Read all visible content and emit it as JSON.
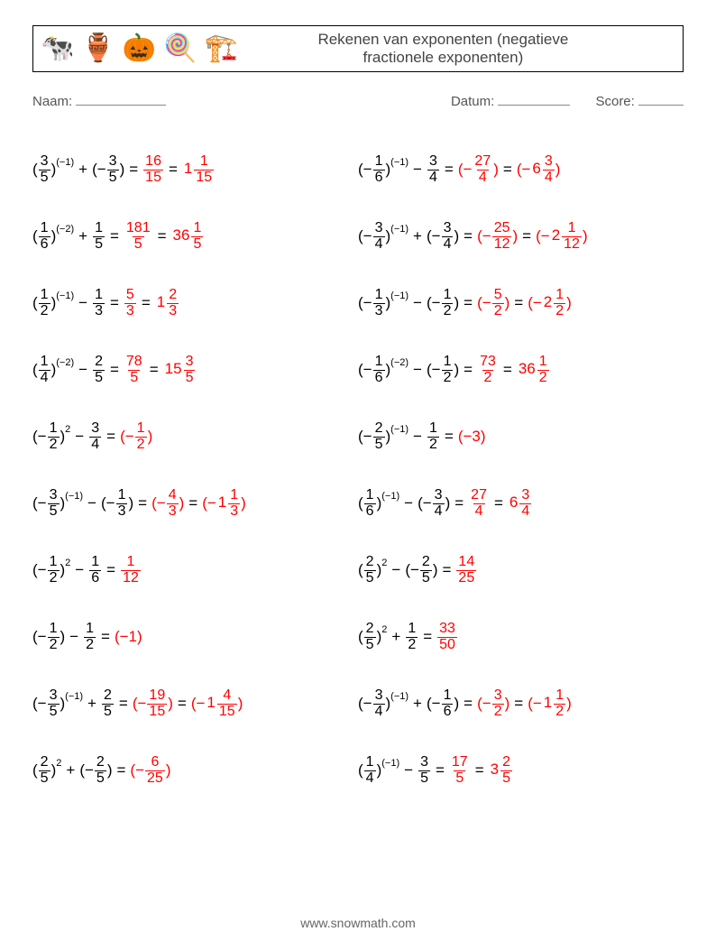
{
  "colors": {
    "text": "#000000",
    "answer": "#ff0000",
    "background": "#ffffff",
    "meta": "#555555",
    "title": "#444444"
  },
  "header": {
    "icons": [
      "🐄",
      "🏺",
      "🎃",
      "🍭",
      "🏗️"
    ],
    "title_line1": "Rekenen van exponenten (negatieve",
    "title_line2": "fractionele exponenten)"
  },
  "meta": {
    "name_label": "Naam:",
    "date_label": "Datum:",
    "score_label": "Score:"
  },
  "footer": "www.snowmath.com",
  "problems": {
    "left": [
      {
        "base": {
          "sign": "",
          "n": "3",
          "d": "5"
        },
        "exp": "(−1)",
        "op": "+",
        "term": {
          "sign": "−",
          "n": "3",
          "d": "5",
          "paren": true
        },
        "a_frac": {
          "n": "16",
          "d": "15"
        },
        "a_mixed": {
          "w": "1",
          "n": "1",
          "d": "15"
        }
      },
      {
        "base": {
          "sign": "",
          "n": "1",
          "d": "6"
        },
        "exp": "(−2)",
        "op": "+",
        "term": {
          "sign": "",
          "n": "1",
          "d": "5"
        },
        "a_frac": {
          "n": "181",
          "d": "5"
        },
        "a_mixed": {
          "w": "36",
          "n": "1",
          "d": "5"
        }
      },
      {
        "base": {
          "sign": "",
          "n": "1",
          "d": "2"
        },
        "exp": "(−1)",
        "op": "−",
        "term": {
          "sign": "",
          "n": "1",
          "d": "3"
        },
        "a_frac": {
          "n": "5",
          "d": "3"
        },
        "a_mixed": {
          "w": "1",
          "n": "2",
          "d": "3"
        }
      },
      {
        "base": {
          "sign": "",
          "n": "1",
          "d": "4"
        },
        "exp": "(−2)",
        "op": "−",
        "term": {
          "sign": "",
          "n": "2",
          "d": "5"
        },
        "a_frac": {
          "n": "78",
          "d": "5"
        },
        "a_mixed": {
          "w": "15",
          "n": "3",
          "d": "5"
        }
      },
      {
        "base": {
          "sign": "−",
          "n": "1",
          "d": "2"
        },
        "exp": "2",
        "op": "−",
        "term": {
          "sign": "",
          "n": "3",
          "d": "4"
        },
        "a_frac": {
          "sign": "−",
          "n": "1",
          "d": "2",
          "paren": true
        }
      },
      {
        "base": {
          "sign": "−",
          "n": "3",
          "d": "5"
        },
        "exp": "(−1)",
        "op": "−",
        "term": {
          "sign": "−",
          "n": "1",
          "d": "3",
          "paren": true
        },
        "a_frac": {
          "sign": "−",
          "n": "4",
          "d": "3",
          "paren": true
        },
        "a_mixed": {
          "paren": true,
          "sign": "−",
          "w": "1",
          "n": "1",
          "d": "3"
        }
      },
      {
        "base": {
          "sign": "−",
          "n": "1",
          "d": "2"
        },
        "exp": "2",
        "op": "−",
        "term": {
          "sign": "",
          "n": "1",
          "d": "6"
        },
        "a_frac": {
          "n": "1",
          "d": "12"
        }
      },
      {
        "base": {
          "sign": "−",
          "n": "1",
          "d": "2"
        },
        "exp": "",
        "op": "−",
        "term": {
          "sign": "",
          "n": "1",
          "d": "2"
        },
        "a_int": {
          "text": "(−1)"
        }
      },
      {
        "base": {
          "sign": "−",
          "n": "3",
          "d": "5"
        },
        "exp": "(−1)",
        "op": "+",
        "term": {
          "sign": "",
          "n": "2",
          "d": "5"
        },
        "a_frac": {
          "sign": "−",
          "n": "19",
          "d": "15",
          "paren": true
        },
        "a_mixed": {
          "paren": true,
          "sign": "−",
          "w": "1",
          "n": "4",
          "d": "15"
        }
      },
      {
        "base": {
          "sign": "",
          "n": "2",
          "d": "5"
        },
        "exp": "2",
        "op": "+",
        "term": {
          "sign": "−",
          "n": "2",
          "d": "5",
          "paren": true
        },
        "a_frac": {
          "sign": "−",
          "n": "6",
          "d": "25",
          "paren": true
        }
      }
    ],
    "right": [
      {
        "base": {
          "sign": "−",
          "n": "1",
          "d": "6"
        },
        "exp": "(−1)",
        "op": "−",
        "term": {
          "sign": "",
          "n": "3",
          "d": "4"
        },
        "a_frac": {
          "sign": "−",
          "n": "27",
          "d": "4",
          "paren": true
        },
        "a_mixed": {
          "paren": true,
          "sign": "−",
          "w": "6",
          "n": "3",
          "d": "4"
        }
      },
      {
        "base": {
          "sign": "−",
          "n": "3",
          "d": "4"
        },
        "exp": "(−1)",
        "op": "+",
        "term": {
          "sign": "−",
          "n": "3",
          "d": "4",
          "paren": true
        },
        "a_frac": {
          "sign": "−",
          "n": "25",
          "d": "12",
          "paren": true
        },
        "a_mixed": {
          "paren": true,
          "sign": "−",
          "w": "2",
          "n": "1",
          "d": "12"
        }
      },
      {
        "base": {
          "sign": "−",
          "n": "1",
          "d": "3"
        },
        "exp": "(−1)",
        "op": "−",
        "term": {
          "sign": "−",
          "n": "1",
          "d": "2",
          "paren": true
        },
        "a_frac": {
          "sign": "−",
          "n": "5",
          "d": "2",
          "paren": true
        },
        "a_mixed": {
          "paren": true,
          "sign": "−",
          "w": "2",
          "n": "1",
          "d": "2"
        }
      },
      {
        "base": {
          "sign": "−",
          "n": "1",
          "d": "6"
        },
        "exp": "(−2)",
        "op": "−",
        "term": {
          "sign": "−",
          "n": "1",
          "d": "2",
          "paren": true
        },
        "a_frac": {
          "n": "73",
          "d": "2"
        },
        "a_mixed": {
          "w": "36",
          "n": "1",
          "d": "2"
        }
      },
      {
        "base": {
          "sign": "−",
          "n": "2",
          "d": "5"
        },
        "exp": "(−1)",
        "op": "−",
        "term": {
          "sign": "",
          "n": "1",
          "d": "2"
        },
        "a_int": {
          "text": "(−3)"
        }
      },
      {
        "base": {
          "sign": "",
          "n": "1",
          "d": "6"
        },
        "exp": "(−1)",
        "op": "−",
        "term": {
          "sign": "−",
          "n": "3",
          "d": "4",
          "paren": true
        },
        "a_frac": {
          "n": "27",
          "d": "4"
        },
        "a_mixed": {
          "w": "6",
          "n": "3",
          "d": "4"
        }
      },
      {
        "base": {
          "sign": "",
          "n": "2",
          "d": "5"
        },
        "exp": "2",
        "op": "−",
        "term": {
          "sign": "−",
          "n": "2",
          "d": "5",
          "paren": true
        },
        "a_frac": {
          "n": "14",
          "d": "25"
        }
      },
      {
        "base": {
          "sign": "",
          "n": "2",
          "d": "5"
        },
        "exp": "2",
        "op": "+",
        "term": {
          "sign": "",
          "n": "1",
          "d": "2"
        },
        "a_frac": {
          "n": "33",
          "d": "50"
        }
      },
      {
        "base": {
          "sign": "−",
          "n": "3",
          "d": "4"
        },
        "exp": "(−1)",
        "op": "+",
        "term": {
          "sign": "−",
          "n": "1",
          "d": "6",
          "paren": true
        },
        "a_frac": {
          "sign": "−",
          "n": "3",
          "d": "2",
          "paren": true
        },
        "a_mixed": {
          "paren": true,
          "sign": "−",
          "w": "1",
          "n": "1",
          "d": "2"
        }
      },
      {
        "base": {
          "sign": "",
          "n": "1",
          "d": "4"
        },
        "exp": "(−1)",
        "op": "−",
        "term": {
          "sign": "",
          "n": "3",
          "d": "5"
        },
        "a_frac": {
          "n": "17",
          "d": "5"
        },
        "a_mixed": {
          "w": "3",
          "n": "2",
          "d": "5"
        }
      }
    ]
  }
}
